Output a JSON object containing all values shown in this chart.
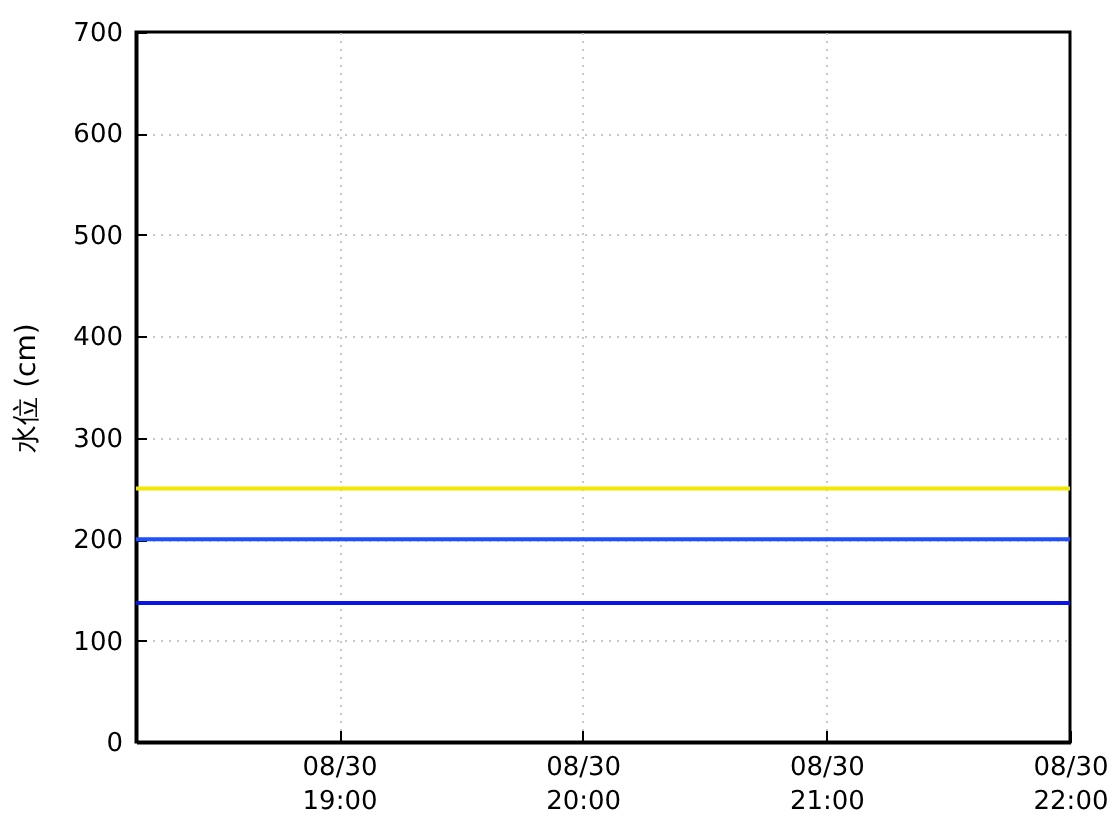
{
  "chart_data": {
    "type": "line",
    "ylabel": "水位 (cm)",
    "xlim": [
      "--08-30T18:10",
      "--08-30T22:00"
    ],
    "xticks": [
      {
        "value": "--08-30T19:00",
        "label": "08/30\n19:00"
      },
      {
        "value": "--08-30T20:00",
        "label": "08/30\n20:00"
      },
      {
        "value": "--08-30T21:00",
        "label": "08/30\n21:00"
      },
      {
        "value": "--08-30T22:00",
        "label": "08/30\n22:00"
      }
    ],
    "ylim": [
      0,
      700
    ],
    "yticks": [
      0,
      100,
      200,
      300,
      400,
      500,
      600,
      700
    ],
    "grid": true,
    "ref_lines": [
      {
        "axis": "y",
        "value": 250,
        "color": "#f0e800"
      },
      {
        "axis": "y",
        "value": 200,
        "color": "#1f4fff"
      },
      {
        "axis": "y",
        "value": 137,
        "color": "#0a14e6"
      }
    ]
  }
}
